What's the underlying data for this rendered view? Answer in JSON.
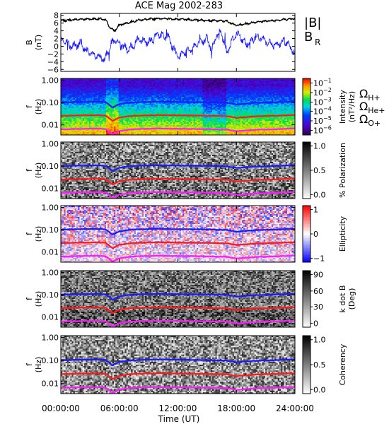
{
  "chart_data": {
    "title": "ACE Mag 2002-283",
    "type": "multi-panel spectrogram",
    "xlabel": "Time (UT)",
    "xticks": [
      "00:00:00",
      "06:00:00",
      "12:00:00",
      "18:00:00",
      "24:00:00"
    ],
    "xlim_hours": [
      0,
      24
    ],
    "colors": {
      "B_total": "#000000",
      "B_R": "#1a1aff",
      "H_plus": "#1a1aff",
      "He_plus": "#ff1a1a",
      "O_plus": "#ff1aff"
    },
    "panels": [
      {
        "id": "field",
        "type": "line",
        "ylabel": "B",
        "yunit": "(nT)",
        "yticks": [
          "8",
          "6",
          "4",
          "2",
          "0",
          "−2",
          "−4",
          "−6"
        ],
        "ylim": [
          -6.5,
          8.5
        ],
        "legend": [
          {
            "label": "|B|",
            "color": "#000000"
          },
          {
            "label": "B",
            "sub": "R",
            "color": "#1a1aff"
          }
        ],
        "series": [
          {
            "name": "|B|",
            "t": [
              0,
              2,
              4,
              4.6,
              5,
              5.5,
              6,
              8,
              10,
              12,
              14,
              16,
              17,
              18,
              19,
              20,
              22,
              24
            ],
            "values": [
              6.6,
              7.0,
              7.1,
              6.8,
              5.0,
              3.9,
              5.5,
              6.8,
              7.2,
              7.0,
              6.8,
              6.6,
              6.5,
              5.4,
              5.8,
              6.3,
              6.7,
              7.2
            ]
          },
          {
            "name": "B_R",
            "t": [
              0,
              1,
              2,
              3,
              4,
              4.5,
              5,
              5.5,
              6,
              7,
              8,
              9,
              10,
              11,
              12,
              13,
              14,
              15,
              15.5,
              16,
              16.5,
              17,
              18,
              19,
              20,
              21,
              22,
              23,
              24
            ],
            "values": [
              2.0,
              0.0,
              0.5,
              -2.0,
              -3.0,
              -3.5,
              0.0,
              1.5,
              0.5,
              -1.0,
              2.0,
              1.0,
              3.0,
              2.5,
              -3.0,
              -1.0,
              0.5,
              2.0,
              -1.0,
              3.0,
              3.5,
              -1.5,
              3.5,
              0.5,
              2.5,
              1.5,
              0.0,
              1.5,
              -2.0
            ]
          }
        ]
      },
      {
        "id": "intensity",
        "type": "heatmap",
        "ylabel": "f",
        "yunit": "(Hz)",
        "yticks": [
          "1.00",
          "0.10",
          "0.01"
        ],
        "colorbar": {
          "label": "Intensity",
          "unit": "(nT²/Hz)",
          "ticks": [
            "10",
            "10",
            "10",
            "10",
            "10",
            "10"
          ],
          "tick_exp": [
            "−1",
            "−2",
            "−3",
            "−4",
            "−5",
            "−6"
          ],
          "range_exp": [
            -6.5,
            -0.5
          ]
        },
        "ion_legend": [
          {
            "label": "Ω",
            "sub": "H+",
            "color": "#1a1aff"
          },
          {
            "label": "Ω",
            "sub": "He+",
            "color": "#ff1a1a"
          },
          {
            "label": "Ω",
            "sub": "O+",
            "color": "#ff1aff"
          }
        ]
      },
      {
        "id": "polarization",
        "type": "heatmap",
        "ylabel": "f",
        "yunit": "(Hz)",
        "yticks": [
          "1.00",
          "0.10",
          "0.01"
        ],
        "colorbar": {
          "label": "% Polarization",
          "ticks": [
            "1.0",
            "0.5",
            "0.0"
          ],
          "range": [
            0,
            1
          ]
        }
      },
      {
        "id": "ellipticity",
        "type": "heatmap",
        "ylabel": "f",
        "yunit": "(Hz)",
        "yticks": [
          "1.00",
          "0.10",
          "0.01"
        ],
        "colorbar": {
          "label": "Ellipticity",
          "ticks": [
            "1",
            "0",
            "−1"
          ],
          "range": [
            -1,
            1
          ]
        }
      },
      {
        "id": "kdotb",
        "type": "heatmap",
        "ylabel": "f",
        "yunit": "(Hz)",
        "yticks": [
          "1.00",
          "0.10",
          "0.01"
        ],
        "colorbar": {
          "label": "k dot B",
          "unit": "(Deg)",
          "ticks": [
            "90",
            "60",
            "30",
            "0"
          ],
          "range": [
            0,
            90
          ]
        }
      },
      {
        "id": "coherency",
        "type": "heatmap",
        "ylabel": "f",
        "yunit": "(Hz)",
        "yticks": [
          "1.00",
          "0.10",
          "0.01"
        ],
        "colorbar": {
          "label": "Coherency",
          "ticks": [
            "1.0",
            "0.5",
            "0.0"
          ],
          "range": [
            0,
            1
          ]
        }
      }
    ],
    "gyrofrequency_lines": {
      "t": [
        0,
        2,
        4,
        4.6,
        5,
        5.3,
        5.6,
        6,
        7,
        8,
        10,
        12,
        14,
        16,
        17,
        18,
        19,
        20,
        22,
        24
      ],
      "H_plus_hz": [
        0.1,
        0.106,
        0.108,
        0.103,
        0.076,
        0.059,
        0.07,
        0.084,
        0.098,
        0.104,
        0.109,
        0.106,
        0.104,
        0.1,
        0.098,
        0.082,
        0.089,
        0.096,
        0.102,
        0.11
      ]
    }
  }
}
